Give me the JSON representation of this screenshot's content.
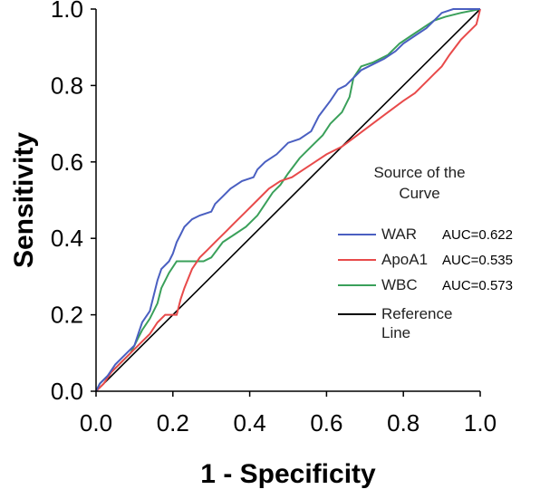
{
  "chart_data": {
    "type": "line",
    "title": "",
    "xlabel": "1 - Specificity",
    "ylabel": "Sensitivity",
    "xlim": [
      0.0,
      1.0
    ],
    "ylim": [
      0.0,
      1.0
    ],
    "xticks": [
      "0.0",
      "0.2",
      "0.4",
      "0.6",
      "0.8",
      "1.0"
    ],
    "yticks": [
      "0.0",
      "0.2",
      "0.4",
      "0.6",
      "0.8",
      "1.0"
    ],
    "legend_title": [
      "Source of the",
      "Curve"
    ],
    "legend_position": "right",
    "series": [
      {
        "name": "WAR",
        "auc_label": "AUC=0.622",
        "color": "#4a5fc1",
        "points": [
          [
            0,
            0
          ],
          [
            0.01,
            0.02
          ],
          [
            0.03,
            0.04
          ],
          [
            0.05,
            0.07
          ],
          [
            0.08,
            0.1
          ],
          [
            0.1,
            0.12
          ],
          [
            0.11,
            0.15
          ],
          [
            0.12,
            0.18
          ],
          [
            0.14,
            0.21
          ],
          [
            0.15,
            0.25
          ],
          [
            0.16,
            0.29
          ],
          [
            0.17,
            0.32
          ],
          [
            0.19,
            0.34
          ],
          [
            0.2,
            0.36
          ],
          [
            0.21,
            0.39
          ],
          [
            0.22,
            0.41
          ],
          [
            0.23,
            0.43
          ],
          [
            0.25,
            0.45
          ],
          [
            0.27,
            0.46
          ],
          [
            0.3,
            0.47
          ],
          [
            0.31,
            0.49
          ],
          [
            0.33,
            0.51
          ],
          [
            0.35,
            0.53
          ],
          [
            0.38,
            0.55
          ],
          [
            0.41,
            0.56
          ],
          [
            0.42,
            0.58
          ],
          [
            0.44,
            0.6
          ],
          [
            0.47,
            0.62
          ],
          [
            0.5,
            0.65
          ],
          [
            0.53,
            0.66
          ],
          [
            0.56,
            0.68
          ],
          [
            0.58,
            0.72
          ],
          [
            0.61,
            0.76
          ],
          [
            0.63,
            0.79
          ],
          [
            0.65,
            0.8
          ],
          [
            0.67,
            0.82
          ],
          [
            0.69,
            0.84
          ],
          [
            0.71,
            0.85
          ],
          [
            0.73,
            0.86
          ],
          [
            0.75,
            0.87
          ],
          [
            0.78,
            0.89
          ],
          [
            0.8,
            0.91
          ],
          [
            0.83,
            0.93
          ],
          [
            0.86,
            0.95
          ],
          [
            0.88,
            0.97
          ],
          [
            0.9,
            0.99
          ],
          [
            0.93,
            1.0
          ],
          [
            1.0,
            1.0
          ]
        ]
      },
      {
        "name": "ApoA1",
        "auc_label": "AUC=0.535",
        "color": "#e84a4a",
        "points": [
          [
            0,
            0
          ],
          [
            0.02,
            0.02
          ],
          [
            0.04,
            0.05
          ],
          [
            0.07,
            0.08
          ],
          [
            0.1,
            0.11
          ],
          [
            0.12,
            0.13
          ],
          [
            0.14,
            0.15
          ],
          [
            0.16,
            0.18
          ],
          [
            0.18,
            0.2
          ],
          [
            0.21,
            0.2
          ],
          [
            0.22,
            0.24
          ],
          [
            0.23,
            0.27
          ],
          [
            0.25,
            0.32
          ],
          [
            0.27,
            0.35
          ],
          [
            0.29,
            0.37
          ],
          [
            0.31,
            0.39
          ],
          [
            0.34,
            0.42
          ],
          [
            0.36,
            0.44
          ],
          [
            0.39,
            0.47
          ],
          [
            0.42,
            0.5
          ],
          [
            0.45,
            0.53
          ],
          [
            0.48,
            0.55
          ],
          [
            0.51,
            0.56
          ],
          [
            0.54,
            0.58
          ],
          [
            0.57,
            0.6
          ],
          [
            0.6,
            0.62
          ],
          [
            0.64,
            0.64
          ],
          [
            0.68,
            0.67
          ],
          [
            0.72,
            0.7
          ],
          [
            0.76,
            0.73
          ],
          [
            0.8,
            0.76
          ],
          [
            0.83,
            0.78
          ],
          [
            0.86,
            0.81
          ],
          [
            0.88,
            0.83
          ],
          [
            0.9,
            0.85
          ],
          [
            0.92,
            0.88
          ],
          [
            0.95,
            0.92
          ],
          [
            0.97,
            0.94
          ],
          [
            0.99,
            0.96
          ],
          [
            1.0,
            1.0
          ]
        ]
      },
      {
        "name": "WBC",
        "auc_label": "AUC=0.573",
        "color": "#3aa05a",
        "points": [
          [
            0,
            0
          ],
          [
            0.01,
            0.02
          ],
          [
            0.03,
            0.04
          ],
          [
            0.06,
            0.07
          ],
          [
            0.09,
            0.1
          ],
          [
            0.11,
            0.14
          ],
          [
            0.12,
            0.16
          ],
          [
            0.14,
            0.19
          ],
          [
            0.16,
            0.23
          ],
          [
            0.17,
            0.27
          ],
          [
            0.19,
            0.31
          ],
          [
            0.21,
            0.34
          ],
          [
            0.24,
            0.34
          ],
          [
            0.28,
            0.34
          ],
          [
            0.3,
            0.35
          ],
          [
            0.33,
            0.39
          ],
          [
            0.36,
            0.41
          ],
          [
            0.39,
            0.43
          ],
          [
            0.42,
            0.46
          ],
          [
            0.44,
            0.49
          ],
          [
            0.46,
            0.52
          ],
          [
            0.48,
            0.54
          ],
          [
            0.5,
            0.57
          ],
          [
            0.53,
            0.61
          ],
          [
            0.56,
            0.64
          ],
          [
            0.59,
            0.67
          ],
          [
            0.61,
            0.7
          ],
          [
            0.64,
            0.73
          ],
          [
            0.66,
            0.77
          ],
          [
            0.67,
            0.82
          ],
          [
            0.69,
            0.85
          ],
          [
            0.72,
            0.86
          ],
          [
            0.76,
            0.88
          ],
          [
            0.79,
            0.91
          ],
          [
            0.82,
            0.93
          ],
          [
            0.85,
            0.95
          ],
          [
            0.88,
            0.97
          ],
          [
            0.91,
            0.98
          ],
          [
            0.95,
            0.99
          ],
          [
            1.0,
            1.0
          ]
        ]
      },
      {
        "name": "Reference Line",
        "label_lines": [
          "Reference",
          "Line"
        ],
        "color": "#000000",
        "points": [
          [
            0,
            0
          ],
          [
            1,
            1
          ]
        ]
      }
    ]
  }
}
